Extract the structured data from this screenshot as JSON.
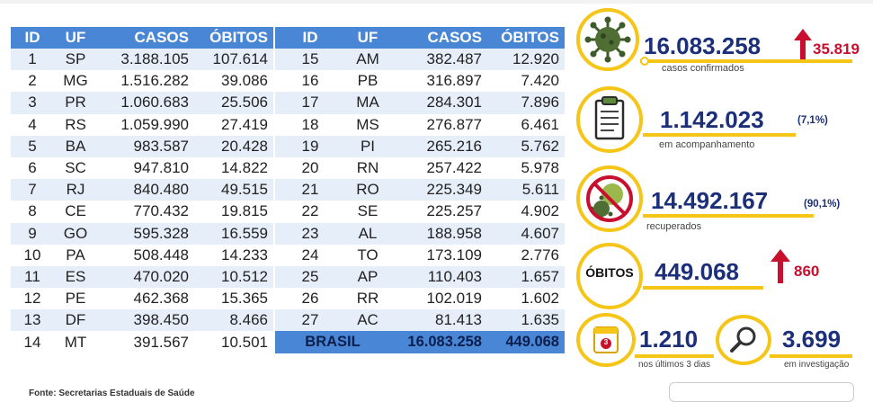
{
  "tables": {
    "header": {
      "id": "ID",
      "uf": "UF",
      "casos": "CASOS",
      "obitos": "ÓBITOS"
    },
    "left": [
      {
        "id": "1",
        "uf": "SP",
        "casos": "3.188.105",
        "obitos": "107.614"
      },
      {
        "id": "2",
        "uf": "MG",
        "casos": "1.516.282",
        "obitos": "39.086"
      },
      {
        "id": "3",
        "uf": "PR",
        "casos": "1.060.683",
        "obitos": "25.506"
      },
      {
        "id": "4",
        "uf": "RS",
        "casos": "1.059.990",
        "obitos": "27.419"
      },
      {
        "id": "5",
        "uf": "BA",
        "casos": "983.587",
        "obitos": "20.428"
      },
      {
        "id": "6",
        "uf": "SC",
        "casos": "947.810",
        "obitos": "14.822"
      },
      {
        "id": "7",
        "uf": "RJ",
        "casos": "840.480",
        "obitos": "49.515"
      },
      {
        "id": "8",
        "uf": "CE",
        "casos": "770.432",
        "obitos": "19.815"
      },
      {
        "id": "9",
        "uf": "GO",
        "casos": "595.328",
        "obitos": "16.559"
      },
      {
        "id": "10",
        "uf": "PA",
        "casos": "508.448",
        "obitos": "14.233"
      },
      {
        "id": "11",
        "uf": "ES",
        "casos": "470.020",
        "obitos": "10.512"
      },
      {
        "id": "12",
        "uf": "PE",
        "casos": "462.368",
        "obitos": "15.365"
      },
      {
        "id": "13",
        "uf": "DF",
        "casos": "398.450",
        "obitos": "8.466"
      },
      {
        "id": "14",
        "uf": "MT",
        "casos": "391.567",
        "obitos": "10.501"
      }
    ],
    "right": [
      {
        "id": "15",
        "uf": "AM",
        "casos": "382.487",
        "obitos": "12.920"
      },
      {
        "id": "16",
        "uf": "PB",
        "casos": "316.897",
        "obitos": "7.420"
      },
      {
        "id": "17",
        "uf": "MA",
        "casos": "284.301",
        "obitos": "7.896"
      },
      {
        "id": "18",
        "uf": "MS",
        "casos": "276.877",
        "obitos": "6.461"
      },
      {
        "id": "19",
        "uf": "PI",
        "casos": "265.216",
        "obitos": "5.762"
      },
      {
        "id": "20",
        "uf": "RN",
        "casos": "257.422",
        "obitos": "5.978"
      },
      {
        "id": "21",
        "uf": "RO",
        "casos": "225.349",
        "obitos": "5.611"
      },
      {
        "id": "22",
        "uf": "SE",
        "casos": "225.257",
        "obitos": "4.902"
      },
      {
        "id": "23",
        "uf": "AL",
        "casos": "188.958",
        "obitos": "4.607"
      },
      {
        "id": "24",
        "uf": "TO",
        "casos": "173.109",
        "obitos": "2.776"
      },
      {
        "id": "25",
        "uf": "AP",
        "casos": "110.403",
        "obitos": "1.657"
      },
      {
        "id": "26",
        "uf": "RR",
        "casos": "102.019",
        "obitos": "1.602"
      },
      {
        "id": "27",
        "uf": "AC",
        "casos": "81.413",
        "obitos": "1.635"
      }
    ],
    "total": {
      "label": "BRASIL",
      "casos": "16.083.258",
      "obitos": "449.068"
    }
  },
  "stats": {
    "confirmed": {
      "value": "16.083.258",
      "delta": "35.819",
      "caption": "casos confirmados",
      "icon": "virus-icon"
    },
    "monitoring": {
      "value": "1.142.023",
      "pct": "(7,1%)",
      "caption": "em acompanhamento",
      "icon": "clipboard-icon"
    },
    "recovered": {
      "value": "14.492.167",
      "pct": "(90,1%)",
      "caption": "recuperados",
      "icon": "no-virus-icon"
    },
    "deaths": {
      "badge": "ÓBITOS",
      "value": "449.068",
      "delta": "860"
    },
    "last3days": {
      "value": "1.210",
      "caption": "nos últimos 3 dias",
      "icon": "calendar-icon",
      "badge": "3"
    },
    "investigation": {
      "value": "3.699",
      "caption": "em investigação",
      "icon": "magnifier-icon"
    }
  },
  "colors": {
    "accent": "#f5c518",
    "header": "#4a86d6",
    "navy": "#1b2f7a",
    "red": "#c8102e",
    "stripe": "#e6eefa"
  },
  "footer": {
    "text": "Fonte: Secretarias Estaduais de Saúde"
  }
}
